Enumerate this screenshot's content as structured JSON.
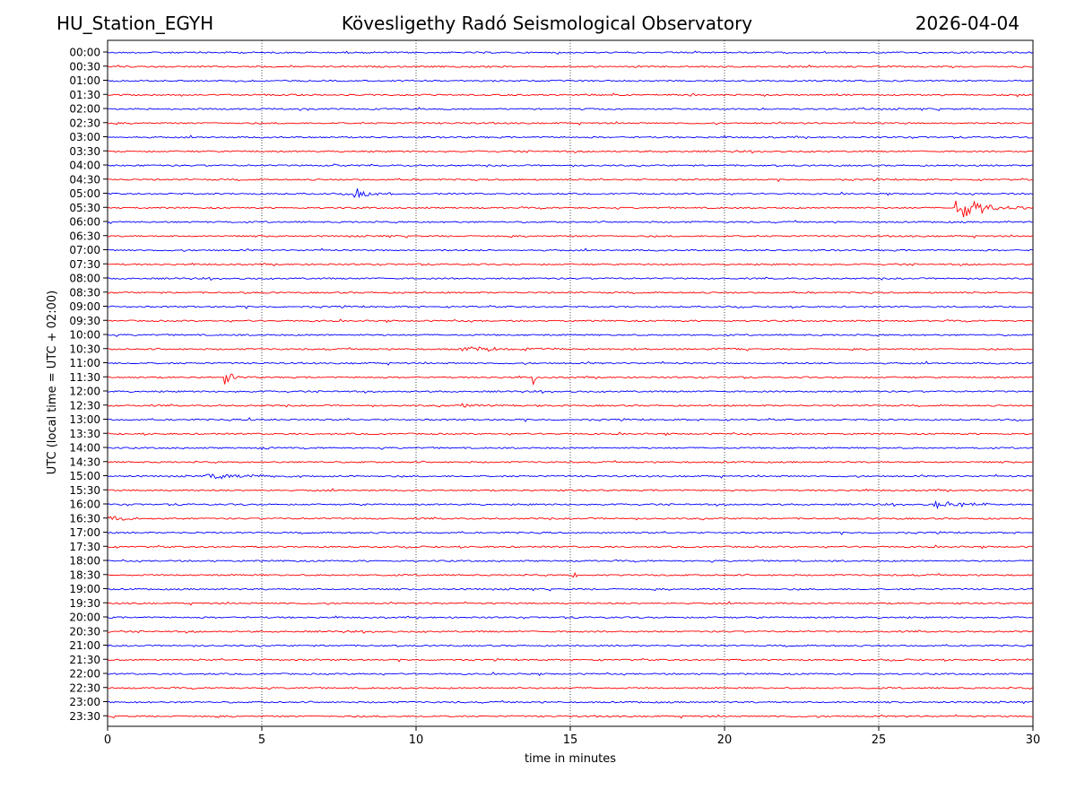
{
  "header": {
    "station": "HU_Station_EGYH",
    "observatory": "Kövesligethy Radó Seismological Observatory",
    "date": "2026-04-04"
  },
  "colors": {
    "even_rows": "#0000ff",
    "odd_rows": "#ff0000",
    "axes": "#000000",
    "grid": "#000000"
  },
  "chart_data": {
    "type": "line",
    "title": "Kövesligethy Radó Seismological Observatory",
    "xlabel": "time in minutes",
    "ylabel": "UTC (local time = UTC + 02:00)",
    "xlim": [
      0,
      30
    ],
    "xticks": [
      0,
      5,
      10,
      15,
      20,
      25,
      30
    ],
    "grid": "vertical dotted lines at each x tick",
    "rows": [
      "00:00",
      "00:30",
      "01:00",
      "01:30",
      "02:00",
      "02:30",
      "03:00",
      "03:30",
      "04:00",
      "04:30",
      "05:00",
      "05:30",
      "06:00",
      "06:30",
      "07:00",
      "07:30",
      "08:00",
      "08:30",
      "09:00",
      "09:30",
      "10:00",
      "10:30",
      "11:00",
      "11:30",
      "12:00",
      "12:30",
      "13:00",
      "13:30",
      "14:00",
      "14:30",
      "15:00",
      "15:30",
      "16:00",
      "16:30",
      "17:00",
      "17:30",
      "18:00",
      "18:30",
      "19:00",
      "19:30",
      "20:00",
      "20:30",
      "21:00",
      "21:30",
      "22:00",
      "22:30",
      "23:00",
      "23:30"
    ],
    "events": [
      {
        "row": "01:30",
        "start_min": 18.9,
        "end_min": 19.4,
        "amp": 0.18
      },
      {
        "row": "04:00",
        "start_min": 7.3,
        "end_min": 7.9,
        "amp": 0.15
      },
      {
        "row": "05:00",
        "start_min": 8.0,
        "end_min": 10.0,
        "amp": 0.45
      },
      {
        "row": "05:30",
        "start_min": 27.5,
        "end_min": 30.0,
        "amp": 1.0
      },
      {
        "row": "06:00",
        "start_min": 0.0,
        "end_min": 1.0,
        "amp": 0.22
      },
      {
        "row": "07:30",
        "start_min": 17.4,
        "end_min": 17.9,
        "amp": 0.15
      },
      {
        "row": "10:30",
        "start_min": 11.5,
        "end_min": 20.5,
        "amp": 0.15
      },
      {
        "row": "11:30",
        "start_min": 3.8,
        "end_min": 4.6,
        "amp": 0.55
      },
      {
        "row": "11:30",
        "start_min": 13.8,
        "end_min": 14.0,
        "amp": 0.6
      },
      {
        "row": "12:30",
        "start_min": 11.5,
        "end_min": 14.5,
        "amp": 0.15
      },
      {
        "row": "13:00",
        "start_min": 4.6,
        "end_min": 5.0,
        "amp": 0.15
      },
      {
        "row": "14:00",
        "start_min": 5.0,
        "end_min": 5.8,
        "amp": 0.15
      },
      {
        "row": "15:00",
        "start_min": 3.2,
        "end_min": 8.0,
        "amp": 0.2
      },
      {
        "row": "16:00",
        "start_min": 26.8,
        "end_min": 30.0,
        "amp": 0.3
      },
      {
        "row": "16:30",
        "start_min": 0.0,
        "end_min": 2.5,
        "amp": 0.22
      },
      {
        "row": "18:30",
        "start_min": 15.1,
        "end_min": 15.4,
        "amp": 0.5
      }
    ]
  }
}
